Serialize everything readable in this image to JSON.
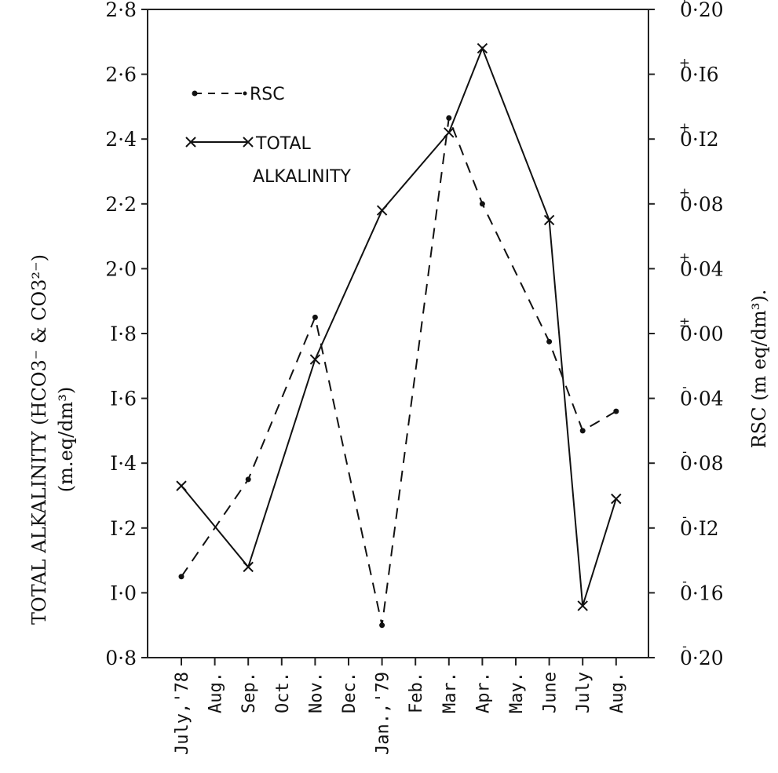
{
  "chart_data": {
    "type": "line",
    "categories": [
      "July,'78",
      "Aug.",
      "Sep.",
      "Oct.",
      "Nov.",
      "Dec.",
      "Jan.,'79",
      "Feb.",
      "Mar.",
      "Apr.",
      "May.",
      "June",
      "July",
      "Aug."
    ],
    "left_axis": {
      "label_line1": "TOTAL ALKALINITY (HCO3⁻ & CO3²⁻)",
      "label_line2": "(m.eq/dm³)",
      "ylim": [
        0.8,
        2.8
      ],
      "ticks": [
        0.8,
        1.0,
        1.2,
        1.4,
        1.6,
        1.8,
        2.0,
        2.2,
        2.4,
        2.6,
        2.8
      ],
      "tick_labels": [
        "0·8",
        "I·0",
        "I·2",
        "I·4",
        "I·6",
        "I·8",
        "2·0",
        "2·2",
        "2·4",
        "2·6",
        "2·8"
      ]
    },
    "right_axis": {
      "label": "RSC (m eq/dm³).",
      "ylim": [
        -0.2,
        0.2
      ],
      "ticks": [
        -0.2,
        -0.16,
        -0.12,
        -0.08,
        -0.04,
        0.0,
        0.04,
        0.08,
        0.12,
        0.16,
        0.2
      ],
      "tick_labels": [
        "0·20",
        "0·16",
        "0·I2",
        "0·08",
        "0·04",
        "0·00",
        "0·04",
        "0·08",
        "0·I2",
        "0·I6",
        "0·20"
      ],
      "tick_signs": [
        "-",
        "-",
        "-",
        "-",
        "-",
        "±",
        "+",
        "+",
        "+",
        "+",
        "+"
      ]
    },
    "series": [
      {
        "name": "TOTAL ALKALINITY",
        "axis": "left",
        "style": "solid",
        "marker": "x",
        "x": [
          0,
          2,
          4,
          6,
          8,
          9,
          11,
          12,
          13
        ],
        "values": [
          1.33,
          1.08,
          1.72,
          2.18,
          2.42,
          2.68,
          2.15,
          0.96,
          1.29
        ]
      },
      {
        "name": "RSC",
        "axis": "right",
        "style": "dashed",
        "marker": "dot",
        "x": [
          0,
          2,
          4,
          6,
          8,
          9,
          11,
          12,
          13
        ],
        "values": [
          -0.15,
          -0.09,
          0.01,
          -0.18,
          0.133,
          0.08,
          -0.005,
          -0.06,
          -0.048
        ]
      }
    ],
    "legend": {
      "placement": "top-left",
      "rsc_label": "RSC",
      "ta_label_line1": "TOTAL",
      "ta_label_line2": "ALKALINITY"
    },
    "grid": false
  }
}
